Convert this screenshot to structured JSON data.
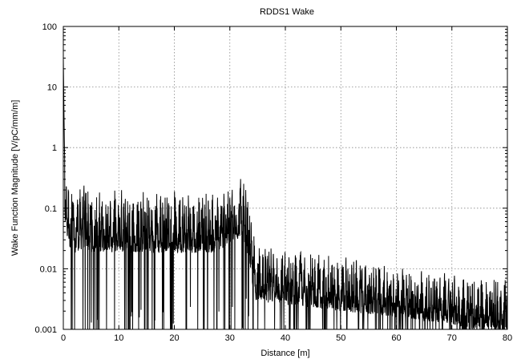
{
  "chart_data": {
    "type": "line",
    "title": "RDDS1  Wake",
    "xlabel": "Distance [m]",
    "ylabel": "Wake Function Magnitude [V/pC/mm/m]",
    "xlim": [
      0,
      80
    ],
    "ylim": [
      0.001,
      100
    ],
    "y_scale": "log",
    "grid": true,
    "x_ticks": [
      0,
      10,
      20,
      30,
      40,
      50,
      60,
      70,
      80
    ],
    "x_tick_labels": [
      "0",
      "10",
      "20",
      "30",
      "40",
      "50",
      "60",
      "70",
      "80"
    ],
    "y_ticks": [
      0.001,
      0.01,
      0.1,
      1,
      10,
      100
    ],
    "y_tick_labels": [
      "0.001",
      "0.01",
      "0.1",
      "1",
      "10",
      "100"
    ],
    "series_color": "#000000",
    "series": [
      {
        "x": [
          0,
          0.1,
          0.2,
          0.3,
          0.5,
          0.8,
          1.2,
          2,
          3,
          4,
          5,
          6,
          7,
          8,
          9,
          10,
          11,
          12,
          13,
          14,
          15,
          16,
          17,
          18,
          19,
          20,
          21,
          22,
          23,
          24,
          25,
          26,
          27,
          28,
          29,
          30,
          31,
          32,
          32.5,
          33,
          33.5,
          34,
          34.5,
          35,
          36,
          37,
          38,
          39,
          40,
          42,
          44,
          46,
          48,
          50,
          52,
          54,
          56,
          58,
          60,
          62,
          64,
          66,
          68,
          70,
          72,
          74,
          76,
          78,
          80
        ],
        "envelope_upper": [
          30,
          5,
          1,
          0.45,
          0.38,
          0.3,
          0.25,
          0.2,
          0.22,
          0.25,
          0.22,
          0.2,
          0.21,
          0.22,
          0.2,
          0.22,
          0.21,
          0.2,
          0.2,
          0.21,
          0.22,
          0.2,
          0.2,
          0.21,
          0.22,
          0.2,
          0.2,
          0.21,
          0.2,
          0.2,
          0.22,
          0.2,
          0.2,
          0.22,
          0.25,
          0.28,
          0.3,
          0.32,
          0.3,
          0.2,
          0.12,
          0.06,
          0.03,
          0.025,
          0.028,
          0.022,
          0.025,
          0.022,
          0.02,
          0.021,
          0.019,
          0.018,
          0.017,
          0.016,
          0.015,
          0.014,
          0.014,
          0.013,
          0.012,
          0.012,
          0.011,
          0.01,
          0.01,
          0.009,
          0.008,
          0.007,
          0.008,
          0.007,
          0.007
        ],
        "typical": [
          30,
          1,
          0.3,
          0.15,
          0.1,
          0.07,
          0.05,
          0.04,
          0.045,
          0.05,
          0.04,
          0.04,
          0.04,
          0.045,
          0.04,
          0.045,
          0.04,
          0.04,
          0.04,
          0.04,
          0.045,
          0.04,
          0.04,
          0.04,
          0.045,
          0.04,
          0.04,
          0.04,
          0.04,
          0.04,
          0.045,
          0.04,
          0.04,
          0.045,
          0.05,
          0.06,
          0.07,
          0.08,
          0.07,
          0.05,
          0.03,
          0.015,
          0.008,
          0.007,
          0.008,
          0.007,
          0.0075,
          0.007,
          0.0065,
          0.0065,
          0.006,
          0.0058,
          0.0055,
          0.005,
          0.005,
          0.0048,
          0.0046,
          0.0045,
          0.0042,
          0.004,
          0.0038,
          0.0036,
          0.0035,
          0.0033,
          0.003,
          0.0028,
          0.003,
          0.0028,
          0.0028
        ]
      }
    ]
  }
}
